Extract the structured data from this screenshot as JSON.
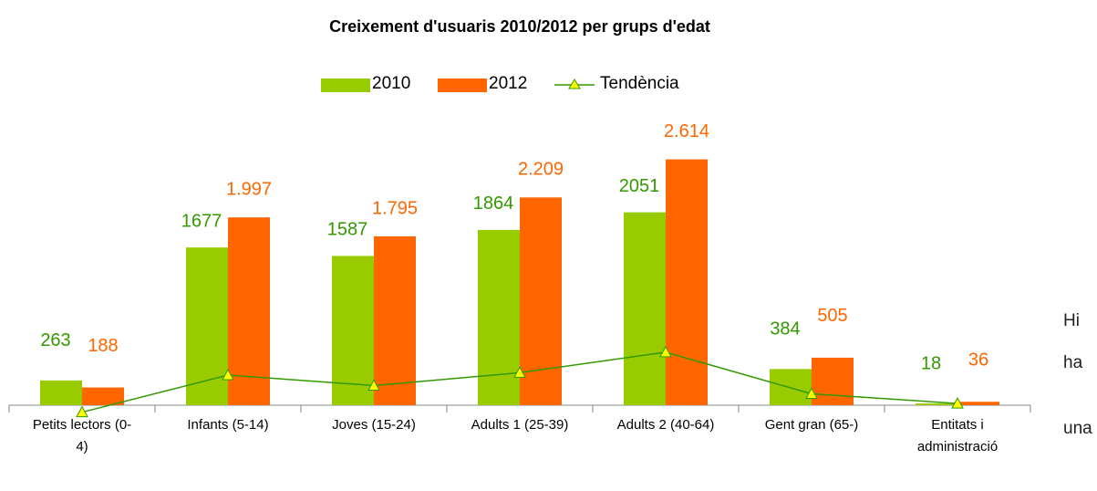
{
  "chart_data": {
    "type": "bar",
    "title": "Creixement d'usuaris 2010/2012 per grups d'edat",
    "categories": [
      "Petits lectors (0-4)",
      "Infants (5-14)",
      "Joves (15-24)",
      "Adults 1 (25-39)",
      "Adults 2 (40-64)",
      "Gent gran (65-)",
      "Entitats i administració"
    ],
    "series": [
      {
        "name": "2010",
        "color": "#99cc00",
        "values": [
          263,
          1677,
          1587,
          1864,
          2051,
          384,
          18
        ]
      },
      {
        "name": "2012",
        "color": "#ff6600",
        "values": [
          188,
          1997,
          1795,
          2209,
          2614,
          505,
          36
        ],
        "value_labels": [
          "188",
          "1.997",
          "1.795",
          "2.209",
          "2.614",
          "505",
          "36"
        ]
      },
      {
        "name": "Tendència",
        "type": "line",
        "color": "#339900",
        "marker_color": "#ffff00",
        "values": [
          -75,
          320,
          208,
          345,
          563,
          121,
          18
        ]
      }
    ],
    "ylim": [
      -350,
      2950
    ]
  },
  "side_text": [
    "Hi",
    "ha",
    "una"
  ]
}
